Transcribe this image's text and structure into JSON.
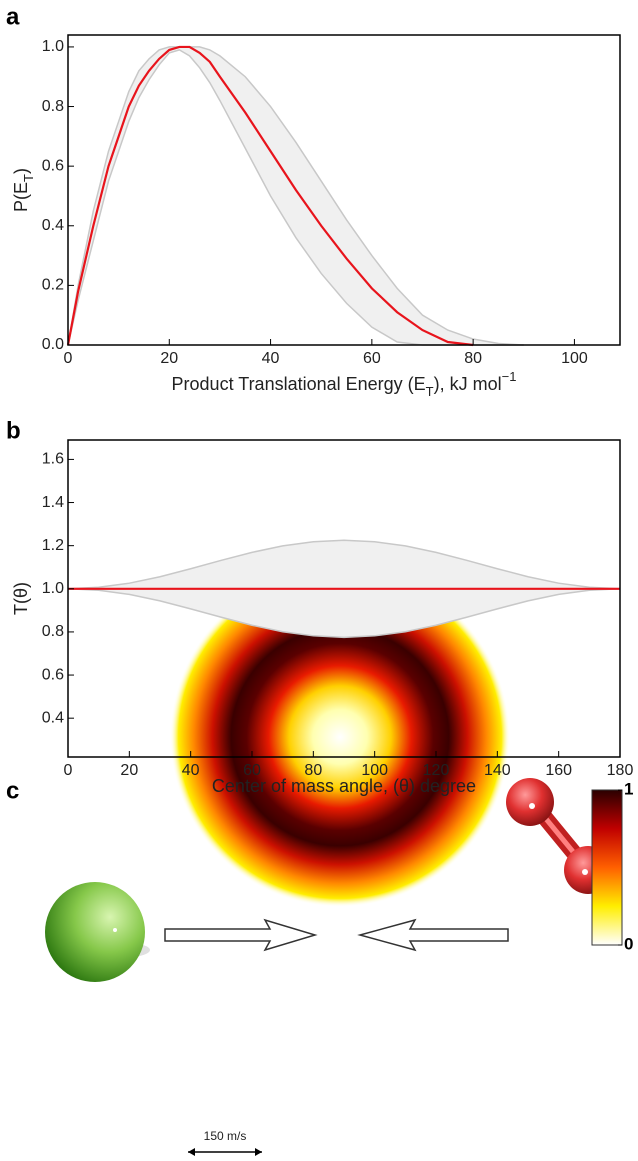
{
  "chart_data": [
    {
      "type": "line",
      "panel_label": "a",
      "xlabel": {
        "text": "Product Translational Energy (E",
        "sub": "T",
        "tail": "), kJ mol",
        "sup": "−1"
      },
      "ylabel": {
        "text": "P(E",
        "sub": "T",
        "tail": ")"
      },
      "x": [
        0,
        2,
        5,
        8,
        10,
        12,
        14,
        16,
        18,
        20,
        22,
        24,
        26,
        28,
        30,
        35,
        40,
        45,
        50,
        55,
        60,
        65,
        70,
        75,
        80,
        85,
        90
      ],
      "series": [
        {
          "color": "#e8141c",
          "values": [
            0,
            0.18,
            0.4,
            0.6,
            0.7,
            0.8,
            0.87,
            0.92,
            0.96,
            0.99,
            1.0,
            1.0,
            0.98,
            0.95,
            0.9,
            0.78,
            0.65,
            0.52,
            0.4,
            0.29,
            0.19,
            0.11,
            0.05,
            0.01,
            0,
            null,
            null
          ]
        }
      ],
      "band": {
        "color": "#f0f0f0",
        "edge": "#c8c8c8",
        "upper": [
          0,
          0.2,
          0.45,
          0.65,
          0.75,
          0.85,
          0.92,
          0.96,
          0.99,
          1.0,
          1.0,
          1.0,
          1.0,
          0.99,
          0.97,
          0.9,
          0.8,
          0.68,
          0.55,
          0.42,
          0.3,
          0.19,
          0.1,
          0.05,
          0.02,
          0.005,
          0
        ],
        "lower": [
          0,
          0.15,
          0.35,
          0.55,
          0.65,
          0.75,
          0.83,
          0.89,
          0.94,
          0.98,
          0.99,
          0.97,
          0.93,
          0.88,
          0.82,
          0.66,
          0.5,
          0.36,
          0.24,
          0.14,
          0.06,
          0.01,
          0,
          0,
          0,
          0,
          0
        ]
      },
      "xlim": [
        0,
        109
      ],
      "xticks": [
        0,
        20,
        40,
        60,
        80,
        100
      ],
      "ylim": [
        0,
        1.04
      ],
      "yticks": [
        {
          "value": 0,
          "label": "0.0"
        },
        0.2,
        0.4,
        0.6,
        0.8,
        {
          "value": 1,
          "label": "1.0"
        }
      ]
    },
    {
      "type": "line",
      "panel_label": "b",
      "xlabel": {
        "text": "Center of mass angle, (θ) degree"
      },
      "ylabel": {
        "text": "T(θ)"
      },
      "x": [
        0,
        10,
        20,
        30,
        40,
        50,
        60,
        70,
        80,
        90,
        100,
        110,
        120,
        130,
        140,
        150,
        160,
        170,
        180
      ],
      "series": [
        {
          "color": "#e8141c",
          "values": [
            1,
            1,
            1,
            1,
            1,
            1,
            1,
            1,
            1,
            1,
            1,
            1,
            1,
            1,
            1,
            1,
            1,
            1,
            1
          ]
        }
      ],
      "band": {
        "color": "#f0f0f0",
        "edge": "#c8c8c8",
        "upper": [
          1.0,
          1.007,
          1.026,
          1.056,
          1.093,
          1.132,
          1.169,
          1.199,
          1.218,
          1.225,
          1.218,
          1.199,
          1.169,
          1.132,
          1.093,
          1.056,
          1.026,
          1.007,
          1.0
        ],
        "lower": [
          1.0,
          0.993,
          0.974,
          0.944,
          0.907,
          0.868,
          0.831,
          0.801,
          0.782,
          0.775,
          0.782,
          0.801,
          0.831,
          0.868,
          0.907,
          0.944,
          0.974,
          0.993,
          1.0
        ]
      },
      "xlim": [
        0,
        180
      ],
      "xticks": [
        0,
        20,
        40,
        60,
        80,
        100,
        120,
        140,
        160,
        180
      ],
      "ylim": [
        0.22,
        1.69
      ],
      "yticks": [
        0.4,
        0.6,
        0.8,
        {
          "value": 1,
          "label": "1.0"
        },
        1.2,
        1.4,
        1.6
      ]
    },
    {
      "type": "heatmap",
      "panel_label": "c",
      "colorbar": {
        "clim": [
          0,
          1
        ],
        "ticks": [
          0,
          1
        ]
      },
      "scale_label": "150 m/s"
    }
  ]
}
